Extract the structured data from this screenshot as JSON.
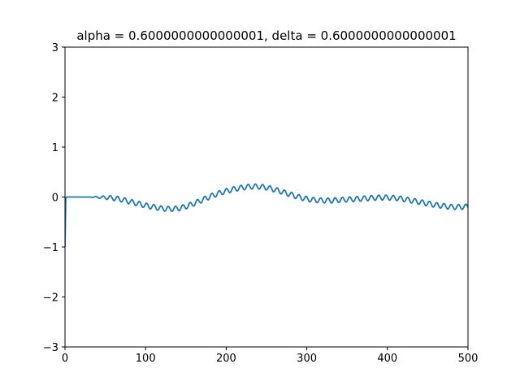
{
  "chart_data": {
    "type": "line",
    "title": "alpha = 0.6000000000000001, delta = 0.6000000000000001",
    "xlabel": "",
    "ylabel": "",
    "xlim": [
      0,
      500
    ],
    "ylim": [
      -3,
      3
    ],
    "xticks": [
      0,
      100,
      200,
      300,
      400,
      500
    ],
    "xtick_labels": [
      "0",
      "100",
      "200",
      "300",
      "400",
      "500"
    ],
    "yticks": [
      -3,
      -2,
      -1,
      0,
      1,
      2,
      3
    ],
    "ytick_labels": [
      "−3",
      "−2",
      "−1",
      "0",
      "1",
      "2",
      "3"
    ],
    "grid": false,
    "legend": "none",
    "line_color": "#1f77b4",
    "series": [
      {
        "x": [
          0,
          1,
          2,
          20,
          35,
          50,
          60,
          70,
          80,
          90,
          100,
          110,
          120,
          130,
          140,
          150,
          160,
          170,
          180,
          190,
          200,
          210,
          220,
          230,
          240,
          250,
          260,
          270,
          280,
          290,
          300,
          310,
          320,
          330,
          340,
          350,
          360,
          370,
          380,
          390,
          400,
          410,
          420,
          430,
          440,
          450,
          460,
          470,
          480,
          490,
          500
        ],
        "y": [
          -1.0,
          -0.02,
          0.0,
          0.0,
          0.0,
          -0.01,
          -0.02,
          -0.05,
          -0.09,
          -0.13,
          -0.17,
          -0.2,
          -0.23,
          -0.24,
          -0.23,
          -0.19,
          -0.13,
          -0.06,
          0.01,
          0.07,
          0.12,
          0.16,
          0.19,
          0.21,
          0.21,
          0.19,
          0.15,
          0.1,
          0.05,
          0.0,
          -0.04,
          -0.06,
          -0.07,
          -0.07,
          -0.06,
          -0.05,
          -0.04,
          -0.03,
          -0.02,
          -0.01,
          -0.01,
          -0.02,
          -0.04,
          -0.07,
          -0.1,
          -0.13,
          -0.16,
          -0.18,
          -0.2,
          -0.2,
          -0.19
        ],
        "oscillation_amplitude": 0.05,
        "oscillation_period": 9
      }
    ]
  }
}
